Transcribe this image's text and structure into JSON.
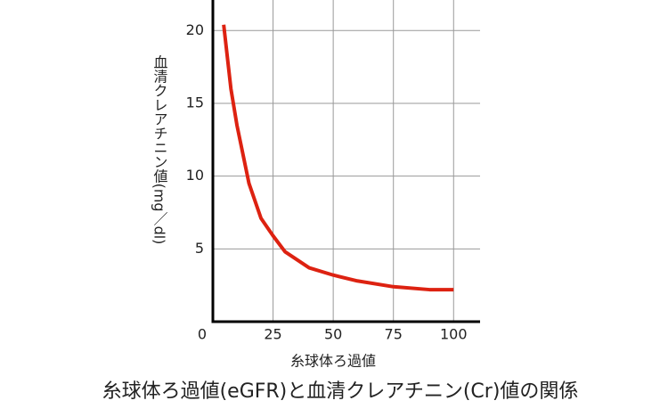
{
  "chart_data": {
    "type": "line",
    "title": "糸球体ろ過値(eGFR)と血清クレアチニン(Cr)値の関係",
    "x_label": "糸球体ろ過値",
    "y_label": "血清クレアチニン値(mg／dl)",
    "x": [
      4.5,
      7.5,
      10,
      15,
      20,
      25,
      30,
      40,
      50,
      60,
      75,
      90,
      100
    ],
    "series": [
      {
        "name": "血清クレアチニン値",
        "color": "#dd2211",
        "values": [
          20.4,
          16,
          13.5,
          9.5,
          7.1,
          5.9,
          4.8,
          3.7,
          3.2,
          2.8,
          2.4,
          2.2,
          2.2
        ]
      }
    ],
    "xlim": [
      0,
      111
    ],
    "ylim": [
      0,
      22.1
    ],
    "xticks": [
      0,
      25,
      50,
      75,
      100
    ],
    "yticks": [
      5,
      10,
      15,
      20
    ],
    "grid": true
  }
}
